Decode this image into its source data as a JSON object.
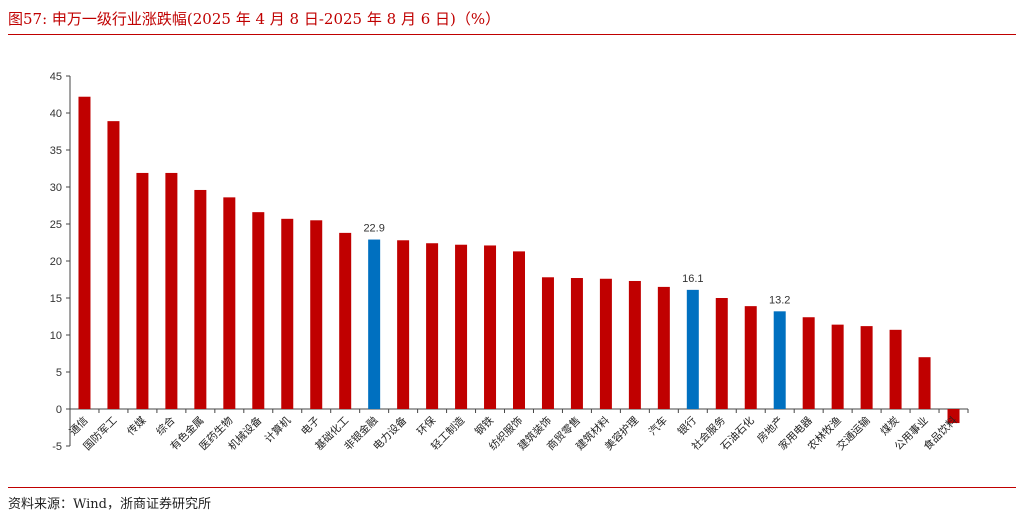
{
  "title": "图57:   申万一级行业涨跌幅(2025 年 4 月 8 日-2025 年 8 月 6 日)（%）",
  "source": "资料来源：Wind，浙商证券研究所",
  "chart_data": {
    "type": "bar",
    "categories": [
      "通信",
      "国防军工",
      "传媒",
      "综合",
      "有色金属",
      "医药生物",
      "机械设备",
      "计算机",
      "电子",
      "基础化工",
      "非银金融",
      "电力设备",
      "环保",
      "轻工制造",
      "钢铁",
      "纺织服饰",
      "建筑装饰",
      "商贸零售",
      "建筑材料",
      "美容护理",
      "汽车",
      "银行",
      "社会服务",
      "石油石化",
      "房地产",
      "家用电器",
      "农林牧渔",
      "交通运输",
      "煤炭",
      "公用事业",
      "食品饮料"
    ],
    "values": [
      42.2,
      38.9,
      31.9,
      31.9,
      29.6,
      28.6,
      26.6,
      25.7,
      25.5,
      23.8,
      22.9,
      22.8,
      22.4,
      22.2,
      22.1,
      21.3,
      17.8,
      17.7,
      17.6,
      17.3,
      16.5,
      16.1,
      15.0,
      13.9,
      13.2,
      12.4,
      11.4,
      11.2,
      10.7,
      7.0,
      -1.9
    ],
    "highlighted": {
      "非银金融": "22.9",
      "银行": "16.1",
      "房地产": "13.2"
    },
    "yticks": [
      45,
      40,
      35,
      30,
      25,
      20,
      15,
      10,
      5,
      0,
      -5
    ],
    "ylim": [
      -5,
      45
    ],
    "colors": {
      "default": "#c00000",
      "highlight": "#0070c0"
    },
    "grid": false,
    "legend": "none"
  }
}
